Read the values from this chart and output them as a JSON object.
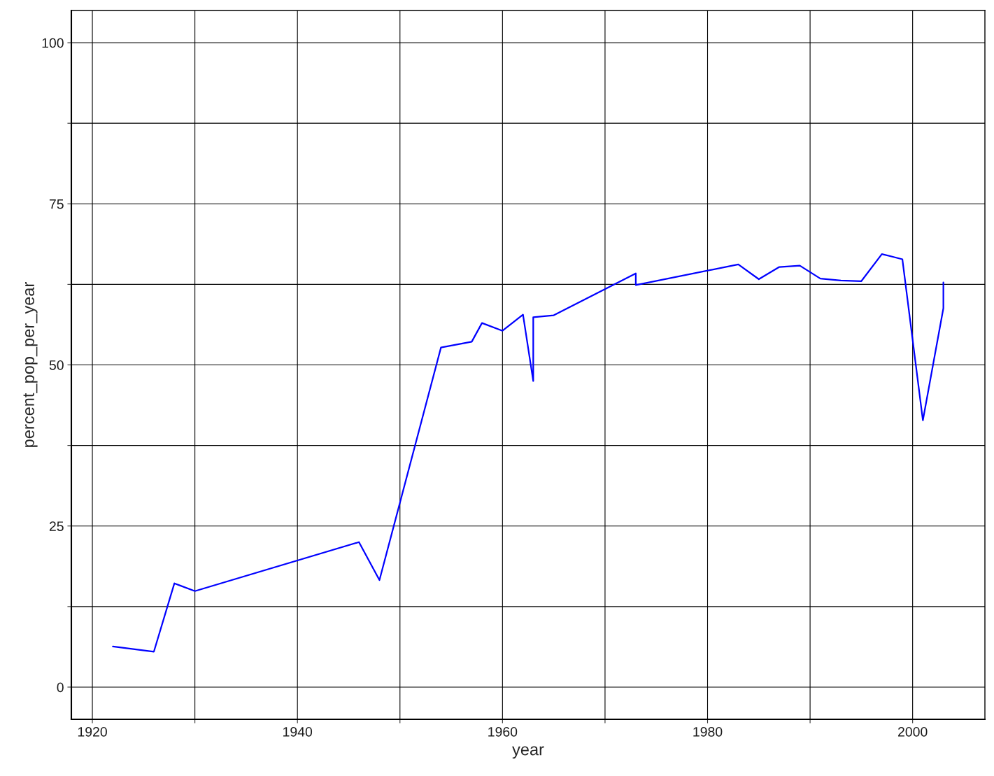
{
  "chart_data": {
    "type": "line",
    "xlabel": "year",
    "ylabel": "percent_pop_per_year",
    "x": [
      1922,
      1926,
      1928,
      1930,
      1946,
      1948,
      1954,
      1957,
      1958,
      1960,
      1962,
      1963,
      1963,
      1965,
      1973,
      1973,
      1983,
      1985,
      1987,
      1989,
      1991,
      1993,
      1995,
      1997,
      1999,
      2001,
      2003,
      2003
    ],
    "series": [
      {
        "color": "#0000ff",
        "values": [
          6.3,
          5.5,
          16.1,
          14.9,
          22.5,
          16.6,
          52.7,
          53.6,
          56.5,
          55.3,
          57.8,
          47.5,
          57.4,
          57.7,
          64.2,
          62.4,
          65.6,
          63.3,
          65.2,
          65.4,
          63.4,
          63.1,
          63.0,
          67.2,
          66.4,
          41.4,
          58.8,
          62.8
        ]
      }
    ],
    "xlim": [
      1917.95,
      2007.05
    ],
    "ylim": [
      -5,
      105
    ],
    "xticks": [
      1920,
      {
        "value": 1930,
        "label": null
      },
      1940,
      {
        "value": 1950,
        "label": null
      },
      1960,
      {
        "value": 1970,
        "label": null
      },
      1980,
      {
        "value": 1990,
        "label": null
      },
      2000
    ],
    "yticks": [
      0,
      {
        "value": 12.5,
        "label": null
      },
      25,
      {
        "value": 37.5,
        "label": null
      },
      50,
      {
        "value": 62.5,
        "label": null
      },
      75,
      {
        "value": 87.5,
        "label": null
      },
      100
    ],
    "grid": true
  }
}
